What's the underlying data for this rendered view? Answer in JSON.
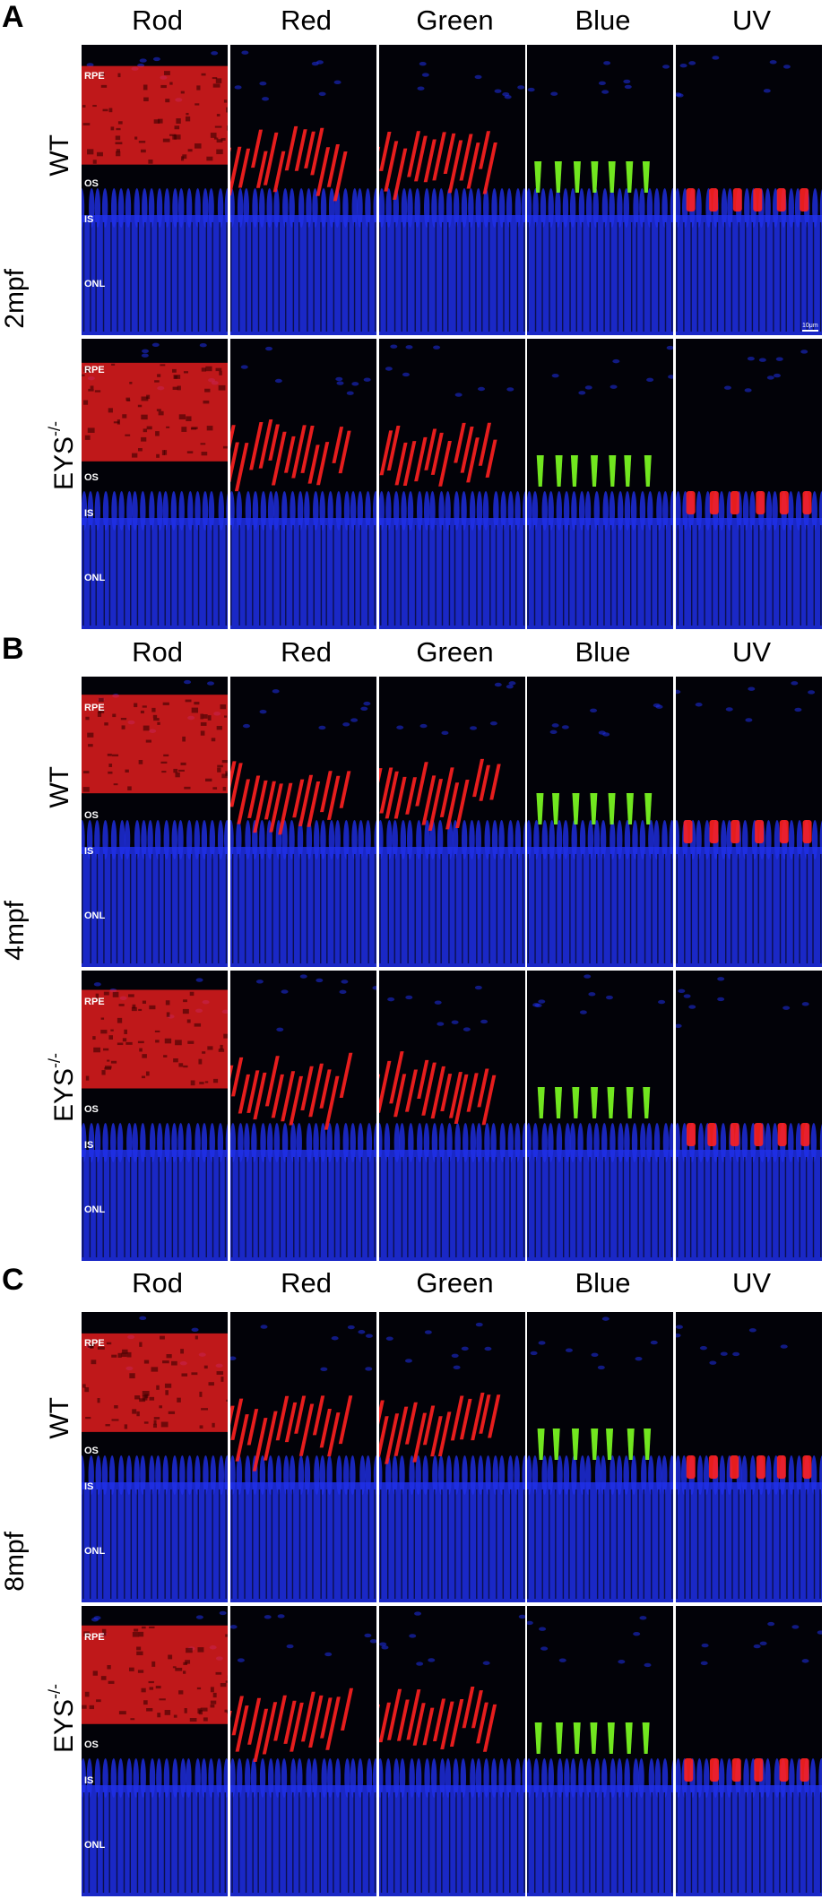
{
  "figure": {
    "columns": [
      "Rod",
      "Red",
      "Green",
      "Blue",
      "UV"
    ],
    "layer_labels": [
      "RPE",
      "OS",
      "IS",
      "ONL"
    ],
    "scale_bar": "10μm",
    "panels": [
      {
        "letter": "A",
        "age": "2mpf",
        "rows": [
          {
            "genotype": "WT",
            "sup": ""
          },
          {
            "genotype": "EYS",
            "sup": "-/-"
          }
        ]
      },
      {
        "letter": "B",
        "age": "4mpf",
        "rows": [
          {
            "genotype": "WT",
            "sup": ""
          },
          {
            "genotype": "EYS",
            "sup": "-/-"
          }
        ]
      },
      {
        "letter": "C",
        "age": "8mpf",
        "rows": [
          {
            "genotype": "WT",
            "sup": ""
          },
          {
            "genotype": "EYS",
            "sup": "-/-"
          }
        ]
      }
    ]
  },
  "colors": {
    "background": "#020208",
    "nuclei": "#1f2fe8",
    "opsin_red": "#ff2020",
    "opsin_blue_cone": "#7dff22",
    "label": "#ffffff"
  }
}
